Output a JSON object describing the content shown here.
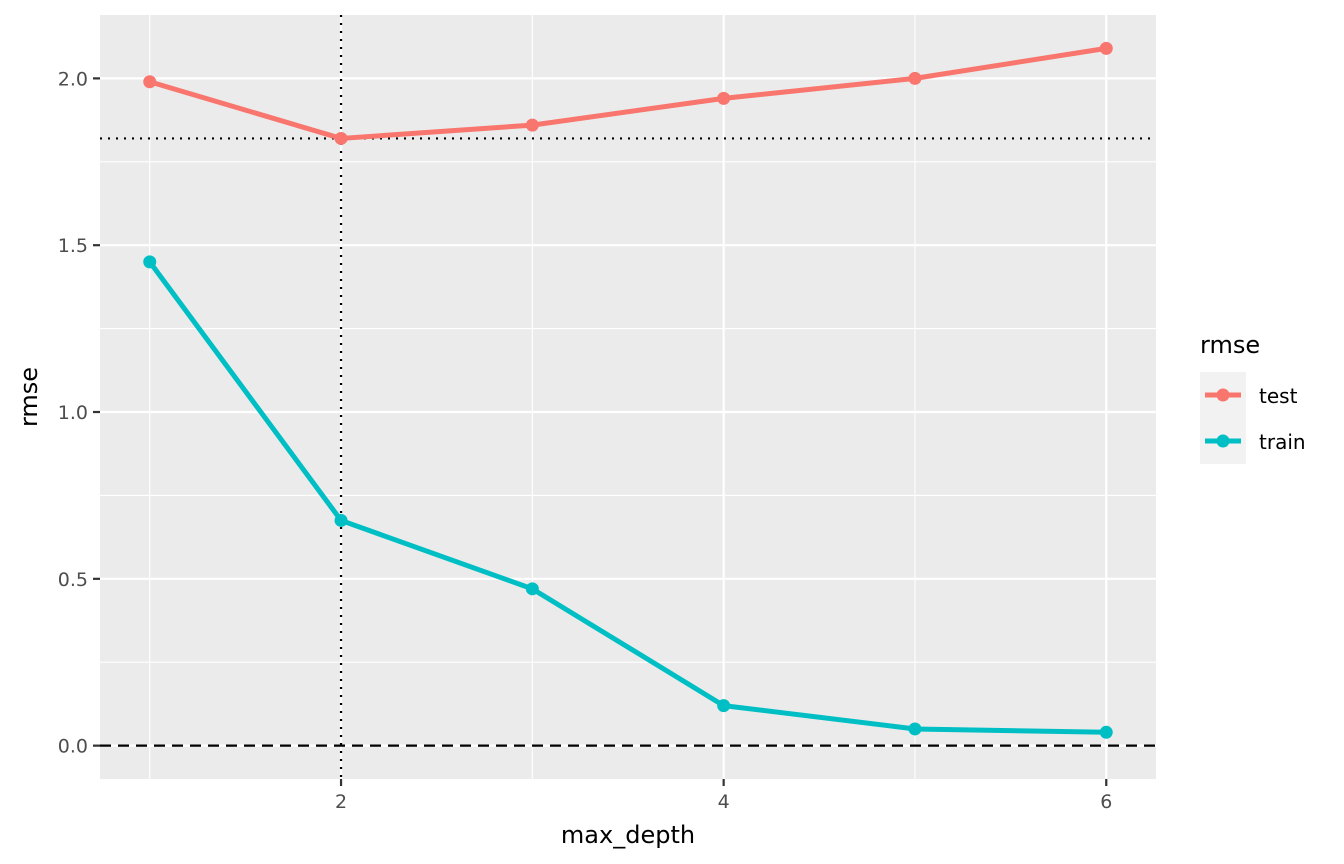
{
  "chart_data": {
    "type": "line",
    "title": "",
    "xlabel": "max_depth",
    "ylabel": "rmse",
    "x": [
      1,
      2,
      3,
      4,
      5,
      6
    ],
    "xlim": [
      0.74,
      6.26
    ],
    "ylim": [
      -0.1,
      2.19
    ],
    "x_ticks": [
      2,
      4,
      6
    ],
    "x_tick_labels": [
      "2",
      "4",
      "6"
    ],
    "y_ticks": [
      0.0,
      0.5,
      1.0,
      1.5,
      2.0
    ],
    "y_tick_labels": [
      "0.0",
      "0.5",
      "1.0",
      "1.5",
      "2.0"
    ],
    "grid": true,
    "legend": {
      "title": "rmse",
      "placement": "right"
    },
    "series": [
      {
        "name": "test",
        "color": "#F8766D",
        "values": [
          1.99,
          1.82,
          1.86,
          1.94,
          2.0,
          2.09
        ]
      },
      {
        "name": "train",
        "color": "#00BFC4",
        "values": [
          1.45,
          0.675,
          0.47,
          0.12,
          0.05,
          0.04
        ]
      }
    ],
    "reference_lines": [
      {
        "orientation": "horizontal",
        "value": 0.0,
        "style": "dashed"
      },
      {
        "orientation": "horizontal",
        "value": 1.82,
        "style": "dotted"
      },
      {
        "orientation": "vertical",
        "value": 2,
        "style": "dotted"
      }
    ]
  }
}
